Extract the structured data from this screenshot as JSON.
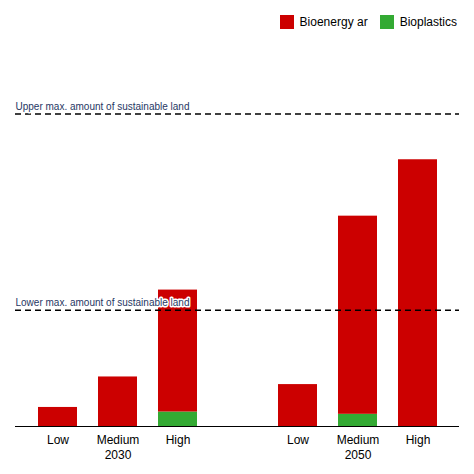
{
  "chart_data": {
    "type": "bar",
    "stacked": true,
    "groups": [
      {
        "label": "2030",
        "categories": [
          "Low",
          "Medium",
          "High"
        ]
      },
      {
        "label": "2050",
        "categories": [
          "Low",
          "Medium",
          "High"
        ]
      }
    ],
    "series": [
      {
        "name": "Bioenergy ar",
        "color": "#CC0000",
        "values": [
          0.5,
          1.3,
          3.2,
          1.1,
          5.2,
          7.0
        ]
      },
      {
        "name": "Bioplastics",
        "color": "#33AA33",
        "values": [
          0.0,
          0.0,
          0.38,
          0.0,
          0.32,
          0.0
        ]
      }
    ],
    "reference_lines": [
      {
        "value": 8.2,
        "label": "Upper max. amount of sustainable land",
        "color": "#1F3864",
        "line_style": "dashed"
      },
      {
        "value": 3.05,
        "label": "Lower max. amount of sustainable land",
        "color": "#1F3864",
        "line_style": "dashed"
      }
    ],
    "ylim": [
      0,
      9.5
    ],
    "tick_labels": "x",
    "grid": false,
    "legend": "upper right"
  }
}
